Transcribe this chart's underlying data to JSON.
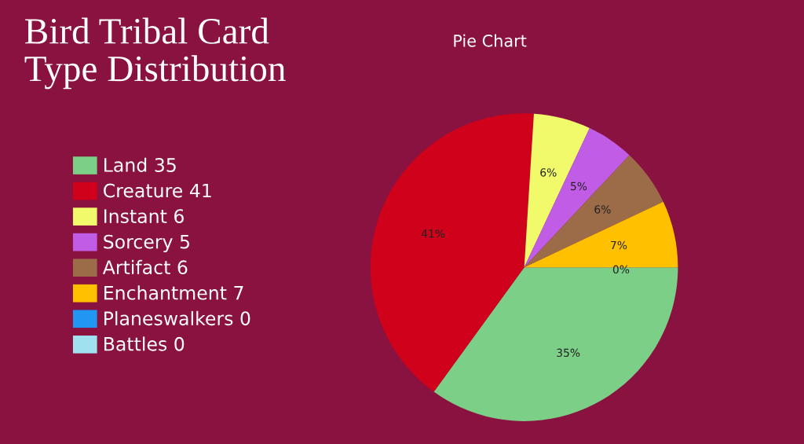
{
  "chart_data": {
    "type": "pie",
    "title": "Bird Tribal Card\nType Distribution",
    "subtitle": "Pie Chart",
    "categories": [
      "Land 35",
      "Creature 41",
      "Instant 6",
      "Sorcery 5",
      "Artifact 6",
      "Enchantment 7",
      "Planeswalkers 0",
      "Battles 0"
    ],
    "values": [
      35,
      41,
      6,
      5,
      6,
      7,
      0,
      0
    ],
    "colors": [
      "#7ccf86",
      "#d0021b",
      "#f0fa6a",
      "#c15ce6",
      "#9c6c48",
      "#ffc000",
      "#2196f3",
      "#9fe1ee"
    ],
    "value_labels": [
      "35%",
      "41%",
      "6%",
      "5%",
      "6%",
      "7%",
      "0%",
      null
    ],
    "legend": "left"
  }
}
